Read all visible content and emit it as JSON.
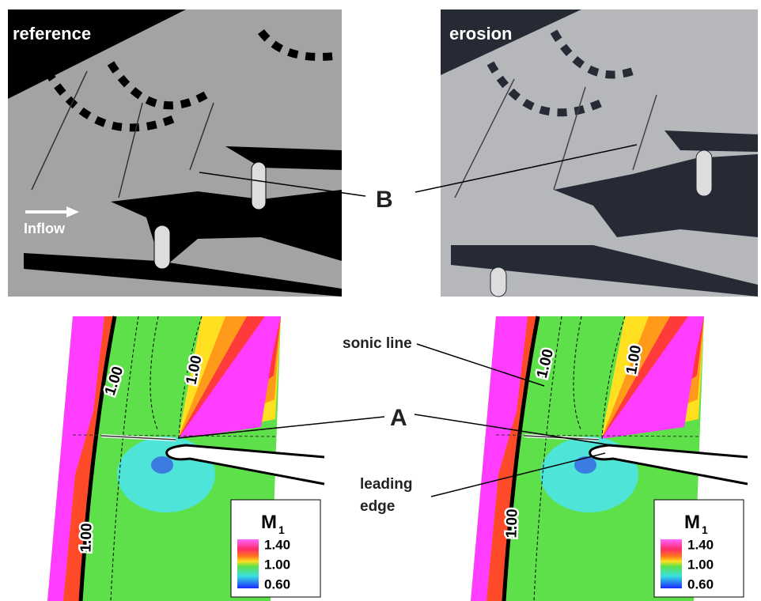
{
  "photos": {
    "reference": {
      "label": "reference",
      "inflow": "Inflow"
    },
    "erosion": {
      "label": "erosion"
    }
  },
  "annotations": {
    "B": "B",
    "A": "A",
    "sonic_line": "sonic line",
    "leading_edge": [
      "leading",
      "edge"
    ]
  },
  "contours": [
    {
      "isolines": [
        "1.00",
        "1.00",
        "1.00"
      ],
      "legend": {
        "symbol": "M",
        "subscript": "1",
        "levels": [
          "1.40",
          "1.00",
          "0.60"
        ]
      }
    },
    {
      "isolines": [
        "1.00",
        "1.00",
        "1.00"
      ],
      "legend": {
        "symbol": "M",
        "subscript": "1",
        "levels": [
          "1.40",
          "1.00",
          "0.60"
        ]
      }
    }
  ]
}
